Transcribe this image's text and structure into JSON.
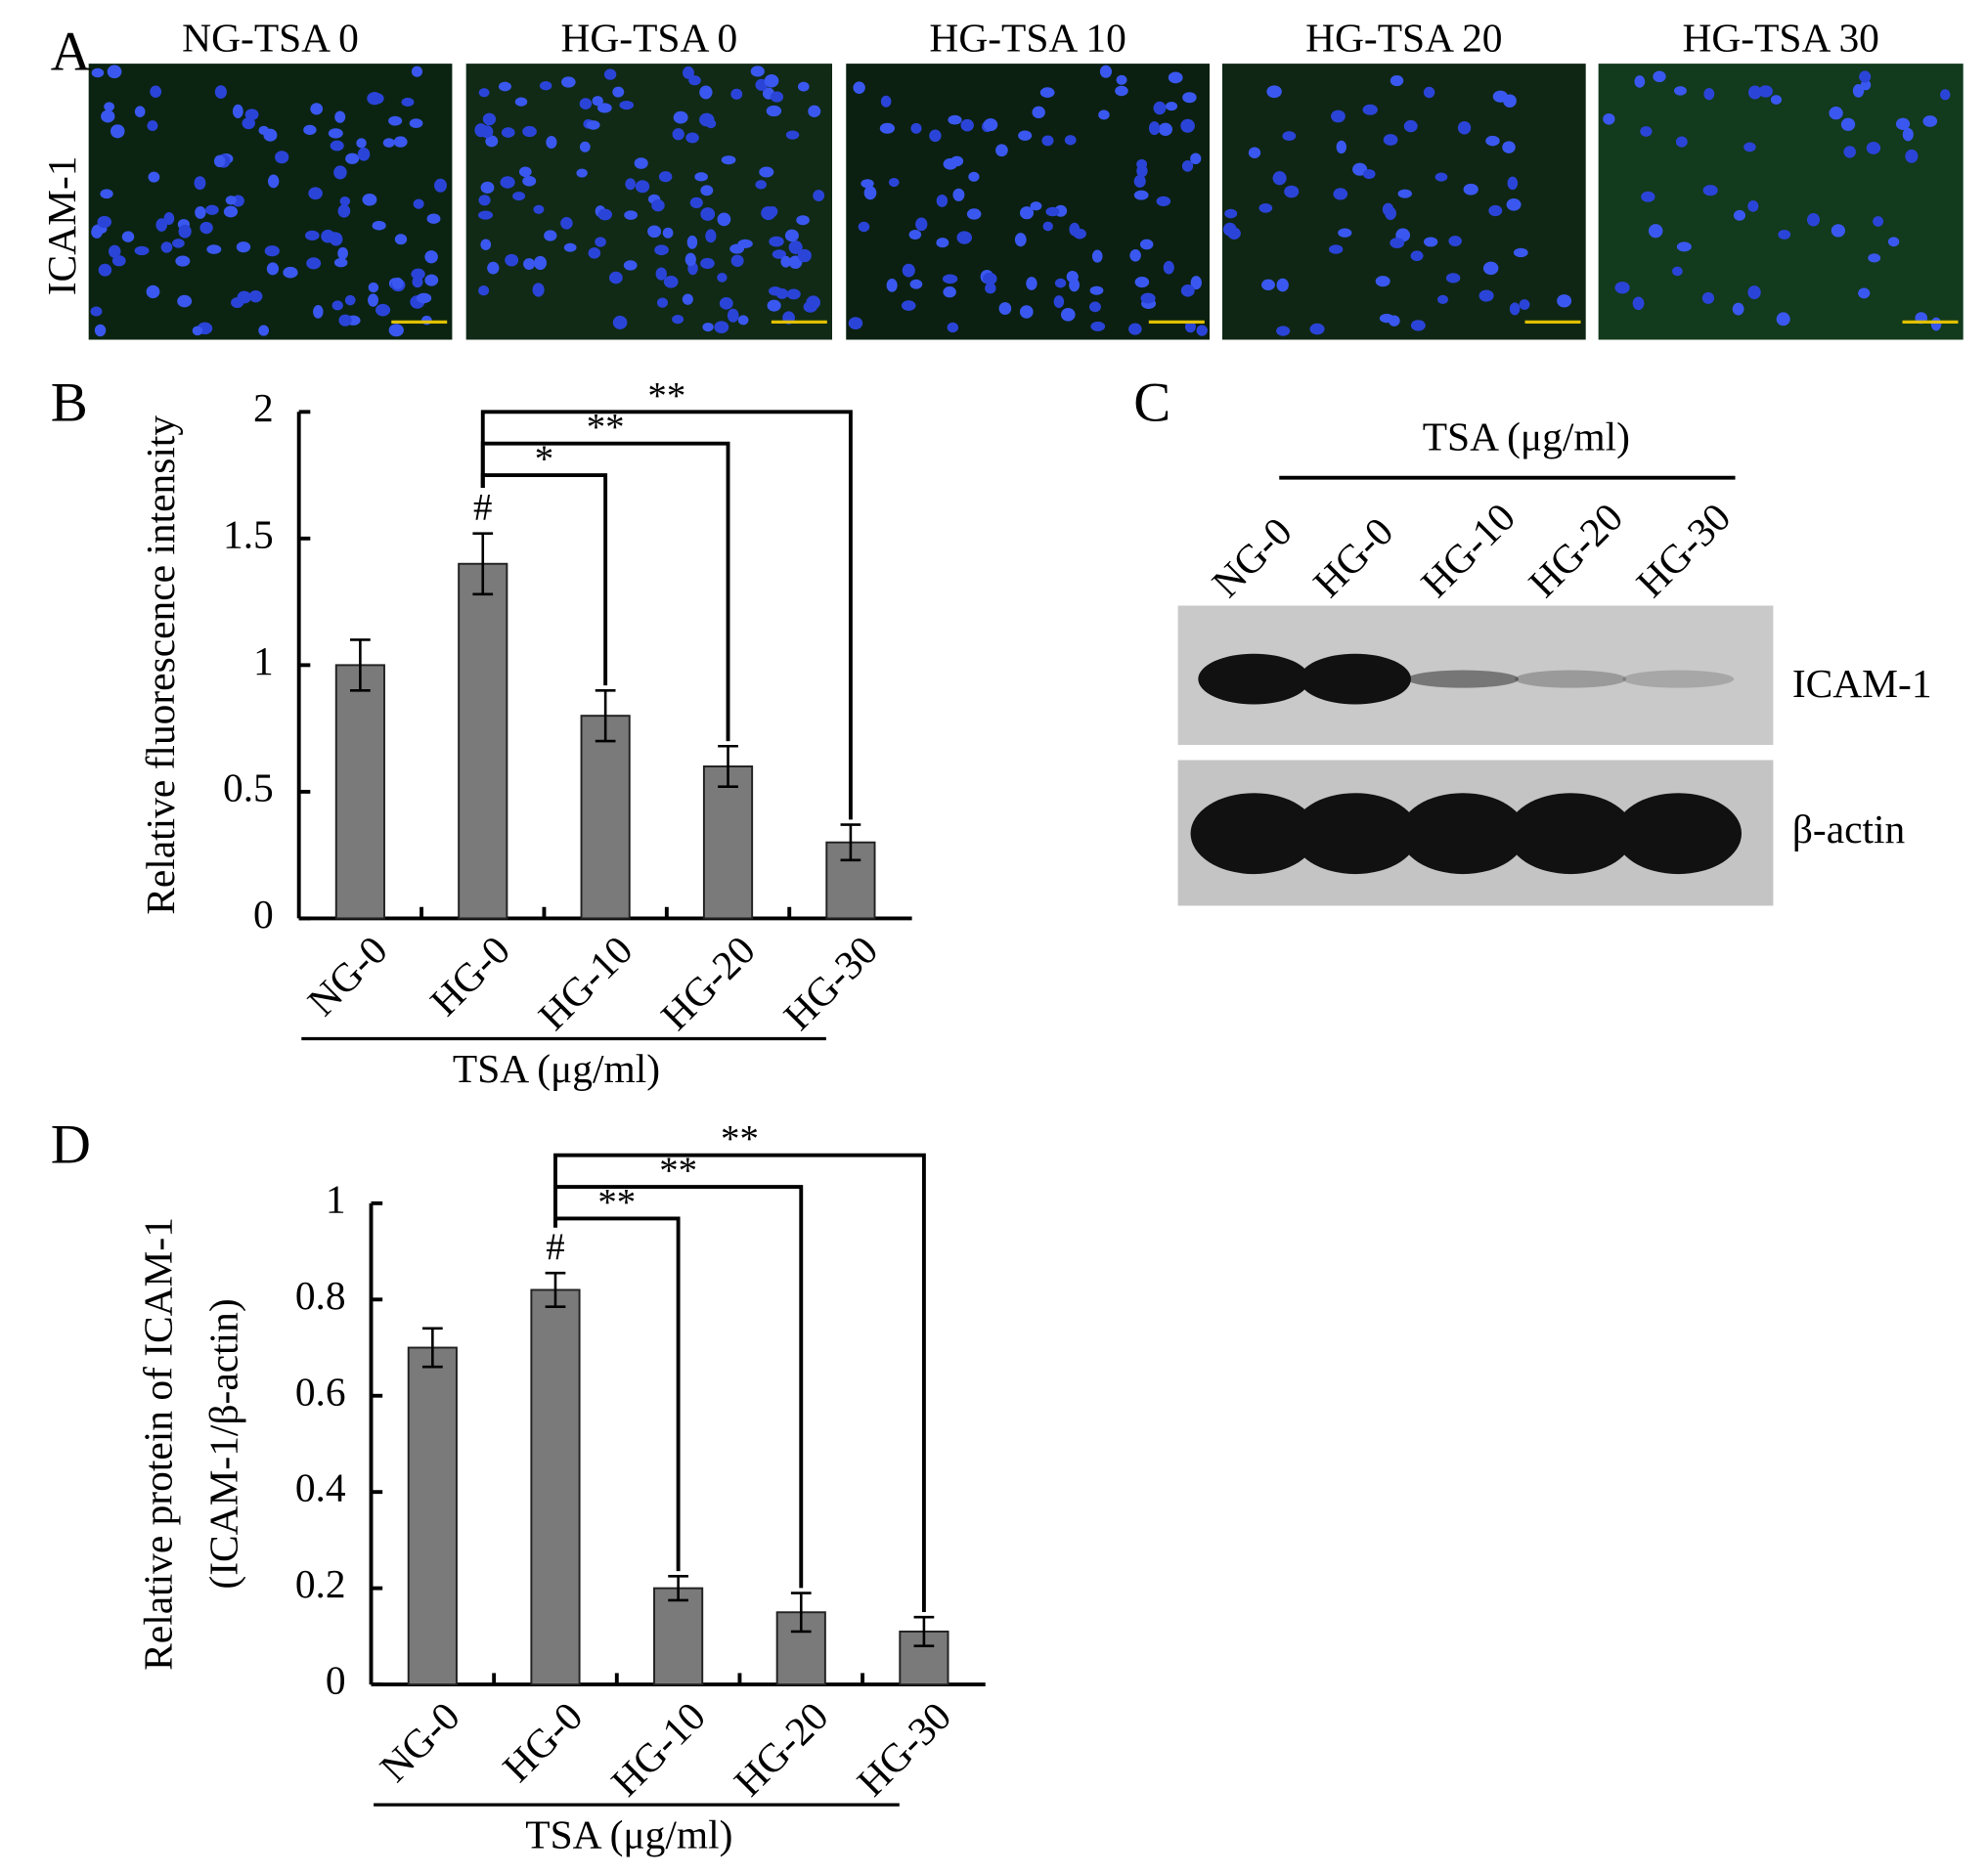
{
  "panel_labels": [
    "A",
    "B",
    "C",
    "D"
  ],
  "panel_a": {
    "row_label": "ICAM-1",
    "titles": [
      "NG-TSA 0",
      "HG-TSA 0",
      "HG-TSA 10",
      "HG-TSA 20",
      "HG-TSA 30"
    ]
  },
  "panel_c": {
    "header": "TSA (μg/ml)",
    "lanes": [
      "NG-0",
      "HG-0",
      "HG-10",
      "HG-20",
      "HG-30"
    ],
    "rows": [
      "ICAM-1",
      "β-actin"
    ]
  },
  "chart_data": [
    {
      "type": "bar",
      "ylabel": "Relative fluorescence intensity",
      "xlabel": "TSA (μg/ml)",
      "categories": [
        "NG-0",
        "HG-0",
        "HG-10",
        "HG-20",
        "HG-30"
      ],
      "values": [
        1.0,
        1.4,
        0.8,
        0.6,
        0.3
      ],
      "errors": [
        0.1,
        0.12,
        0.1,
        0.08,
        0.07
      ],
      "annotations": [
        null,
        "#",
        null,
        null,
        null
      ],
      "significance": [
        null,
        null,
        "*",
        "**",
        "**"
      ],
      "color": "#7a7a7a",
      "ylim": [
        0,
        2
      ],
      "yticks": [
        0,
        0.5,
        1,
        1.5,
        2
      ]
    },
    {
      "type": "bar",
      "ylabel": [
        "Relative protein of ICAM-1",
        "(ICAM-1/β-actin)"
      ],
      "xlabel": "TSA (μg/ml)",
      "categories": [
        "NG-0",
        "HG-0",
        "HG-10",
        "HG-20",
        "HG-30"
      ],
      "values": [
        0.7,
        0.82,
        0.2,
        0.15,
        0.11
      ],
      "errors": [
        0.04,
        0.035,
        0.025,
        0.04,
        0.03
      ],
      "annotations": [
        null,
        "#",
        null,
        null,
        null
      ],
      "significance": [
        null,
        null,
        "**",
        "**",
        "**"
      ],
      "color": "#7a7a7a",
      "ylim": [
        0,
        1
      ],
      "yticks": [
        0,
        0.2,
        0.4,
        0.6,
        0.8,
        1
      ]
    }
  ]
}
